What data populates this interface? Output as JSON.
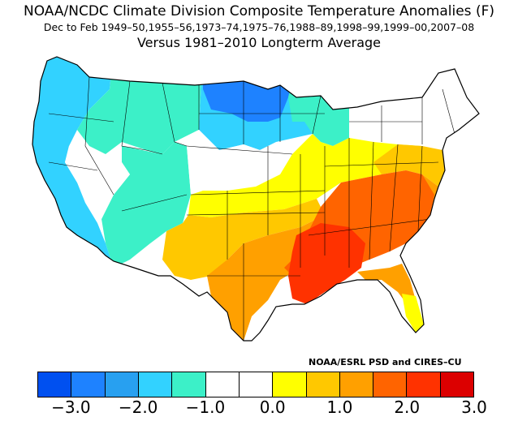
{
  "title": {
    "line1": "NOAA/NCDC Climate Division Composite Temperature Anomalies (F)",
    "line2": "Dec to Feb  1949–50,1955–56,1973–74,1975–76,1988–89,1998–99,1999–00,2007–08",
    "line3": "Versus 1981–2010 Longterm Average"
  },
  "credit": "NOAA/ESRL PSD and CIRES–CU",
  "legend": {
    "colors": [
      "#0050f0",
      "#1e82ff",
      "#28a0f0",
      "#32d2ff",
      "#3cf0c8",
      "#ffffff",
      "#ffffff",
      "#ffff00",
      "#ffc800",
      "#ffa000",
      "#ff6400",
      "#ff3200",
      "#dc0000"
    ],
    "tick_labels": [
      "−3.0",
      "−2.0",
      "−1.0",
      "0.0",
      "1.0",
      "2.0",
      "3.0"
    ]
  },
  "regions": [
    {
      "name": "pacific-northwest-coast",
      "color": "#32d2ff"
    },
    {
      "name": "california-coast",
      "color": "#32d2ff"
    },
    {
      "name": "northern-rockies",
      "color": "#3cf0c8"
    },
    {
      "name": "great-basin",
      "color": "#ffffff"
    },
    {
      "name": "southwest",
      "color": "#3cf0c8"
    },
    {
      "name": "northern-plains",
      "color": "#32d2ff"
    },
    {
      "name": "north-dakota-minnesota",
      "color": "#1e82ff"
    },
    {
      "name": "upper-midwest",
      "color": "#3cf0c8"
    },
    {
      "name": "new-england",
      "color": "#ffffff"
    },
    {
      "name": "central-plains",
      "color": "#ffffff"
    },
    {
      "name": "ohio-valley",
      "color": "#ffff00"
    },
    {
      "name": "mid-atlantic",
      "color": "#ffc800"
    },
    {
      "name": "southern-plains",
      "color": "#ffc800"
    },
    {
      "name": "texas",
      "color": "#ffa000"
    },
    {
      "name": "southeast",
      "color": "#ff6400"
    },
    {
      "name": "lower-mississippi",
      "color": "#ff3200"
    },
    {
      "name": "florida",
      "color": "#ffa000"
    },
    {
      "name": "south-florida",
      "color": "#ffff00"
    }
  ]
}
